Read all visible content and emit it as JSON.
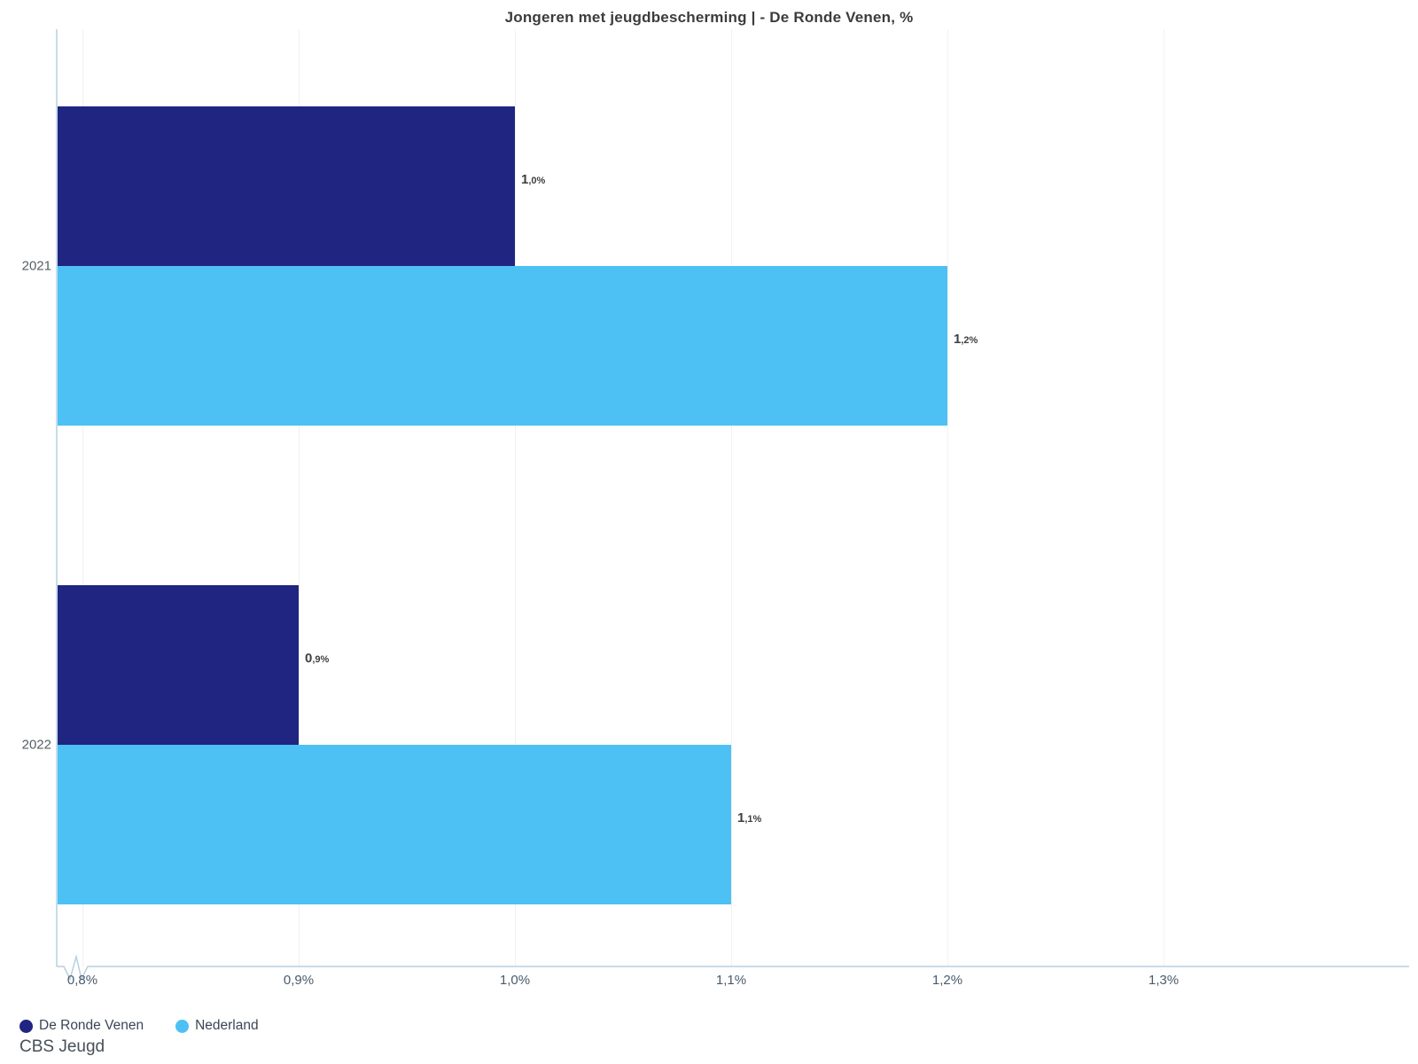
{
  "title": "Jongeren met jeugdbescherming | - De Ronde Venen, %",
  "source": "CBS Jeugd",
  "colors": {
    "de_ronde_venen": "#1f2581",
    "nederland": "#4dc1f4",
    "axis_line": "#b6d0e2",
    "gridline": "#f1f1f1",
    "title_text": "#3c3c3c",
    "tick_text": "#4a5a6b",
    "value_text": "#3f3f3f"
  },
  "legend": {
    "position": "bottom-left",
    "items": [
      {
        "label": "De Ronde Venen",
        "color": "#1f2581"
      },
      {
        "label": "Nederland",
        "color": "#4dc1f4"
      }
    ]
  },
  "chart_data": {
    "type": "bar",
    "orientation": "horizontal",
    "title": "Jongeren met jeugdbescherming | - De Ronde Venen, %",
    "categories": [
      "2021",
      "2022"
    ],
    "series": [
      {
        "name": "De Ronde Venen",
        "color": "#1f2581",
        "values": [
          1.0,
          0.9
        ],
        "labels": [
          "1,0%",
          "0,9%"
        ]
      },
      {
        "name": "Nederland",
        "color": "#4dc1f4",
        "values": [
          1.2,
          1.1
        ],
        "labels": [
          "1,2%",
          "1,1%"
        ]
      }
    ],
    "value_unit": "%",
    "x_ticks": [
      {
        "value": 0.8,
        "label": "0,8%"
      },
      {
        "value": 0.9,
        "label": "0,9%"
      },
      {
        "value": 1.0,
        "label": "1,0%"
      },
      {
        "value": 1.1,
        "label": "1,1%"
      },
      {
        "value": 1.2,
        "label": "1,2%"
      },
      {
        "value": 1.3,
        "label": "1,3%"
      }
    ],
    "axis_break_at_origin": true,
    "grid": "vertical",
    "legend_position": "bottom-left"
  }
}
